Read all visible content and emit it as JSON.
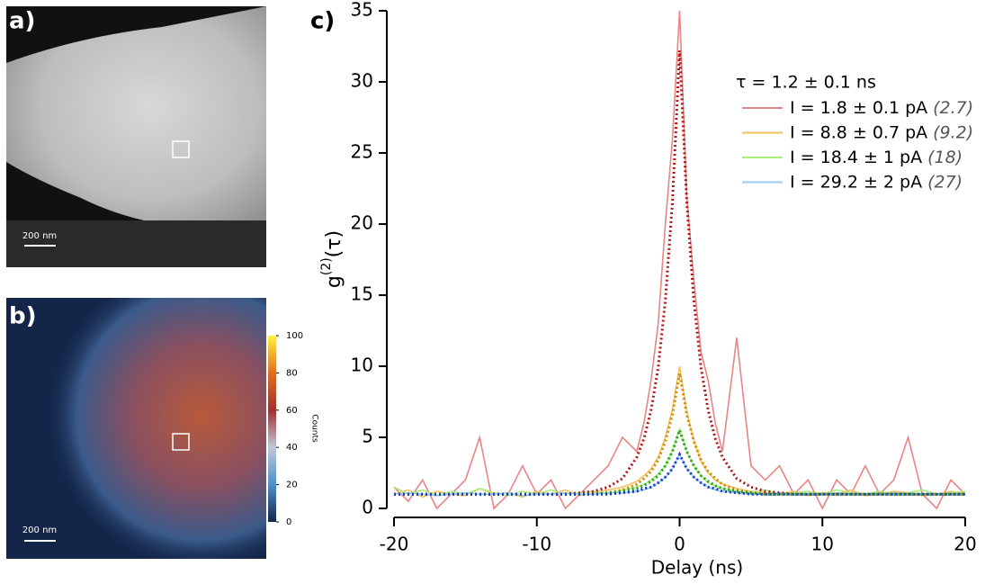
{
  "panel_a": {
    "label": "a)",
    "scale_bar": "200 nm"
  },
  "panel_b": {
    "label": "b)",
    "scale_bar": "200 nm",
    "colorbar": {
      "label": "Counts",
      "lim": [
        0,
        100
      ],
      "ticks": [
        0,
        20,
        40,
        60,
        80,
        100
      ]
    }
  },
  "chart_data": {
    "type": "line",
    "panel_label": "c)",
    "xlabel": "Delay (ns)",
    "ylabel": {
      "base": "g",
      "sup": "(2)",
      "arg": "(τ)"
    },
    "legend_title": "τ = 1.2 ± 0.1 ns",
    "xlim": [
      -20,
      20
    ],
    "ylim": [
      0,
      35
    ],
    "xticks": [
      -20,
      -10,
      0,
      10,
      20
    ],
    "yticks": [
      0,
      5,
      10,
      15,
      20,
      25,
      30,
      35
    ],
    "x": [
      -20,
      -19,
      -18,
      -17,
      -16,
      -15,
      -14,
      -13,
      -12,
      -11,
      -10,
      -9,
      -8,
      -7,
      -6,
      -5,
      -4,
      -3,
      -2.5,
      -2,
      -1.5,
      -1,
      -0.5,
      0,
      0.5,
      1,
      1.5,
      2,
      2.5,
      3,
      4,
      5,
      6,
      7,
      8,
      9,
      10,
      11,
      12,
      13,
      14,
      15,
      16,
      17,
      18,
      19,
      20
    ],
    "series": [
      {
        "name": "I = 1.8 ± 0.1 pA",
        "note": "(2.7)",
        "color": "#e88585",
        "values": [
          1.5,
          0.5,
          2,
          0,
          1,
          2,
          5,
          0,
          1,
          3,
          1,
          2,
          0,
          1,
          2,
          3,
          5,
          4,
          6,
          9,
          13,
          20,
          26,
          35,
          22,
          16,
          11,
          9,
          6,
          4,
          12,
          3,
          2,
          3,
          1,
          2,
          0,
          2,
          1,
          3,
          1,
          2,
          5,
          1,
          0,
          2,
          1
        ]
      },
      {
        "name": "I = 8.8 ± 0.7 pA",
        "note": "(9.2)",
        "color": "#f5c060",
        "values": [
          1,
          1.3,
          0.8,
          1.2,
          1,
          0.9,
          1.4,
          1,
          1.1,
          0.8,
          1.2,
          1,
          1.3,
          0.9,
          1.1,
          1.3,
          1.5,
          1.9,
          2.3,
          2.8,
          3.6,
          5,
          7,
          10,
          6.8,
          4.8,
          3.3,
          2.5,
          2,
          1.7,
          1.4,
          1.2,
          1.1,
          1,
          1.2,
          0.9,
          1.1,
          1,
          1.3,
          0.9,
          1,
          1.2,
          1.1,
          0.9,
          1,
          1.2,
          1
        ]
      },
      {
        "name": "I = 18.4 ± 1 pA",
        "note": "(18)",
        "color": "#a8ee78",
        "values": [
          1.5,
          1,
          1.3,
          0.9,
          1.2,
          1,
          1.4,
          1.1,
          0.9,
          1.2,
          1,
          1.3,
          1,
          1.1,
          1.2,
          1,
          1.3,
          1.5,
          1.7,
          2,
          2.4,
          3,
          4.1,
          5.6,
          4,
          3,
          2.3,
          1.8,
          1.6,
          1.4,
          1.2,
          1.1,
          1.3,
          1,
          1.1,
          1.2,
          1,
          1.3,
          1.1,
          1,
          1.2,
          1,
          1.1,
          1.3,
          1,
          1.1,
          1.2
        ]
      },
      {
        "name": "I = 29.2 ± 2 pA",
        "note": "(27)",
        "color": "#98ccf0",
        "values": [
          1,
          1.1,
          1,
          0.9,
          1,
          1.1,
          1,
          1,
          1.1,
          0.9,
          1,
          1,
          1.1,
          1,
          1,
          1.1,
          1.1,
          1.2,
          1.3,
          1.5,
          1.8,
          2.2,
          2.8,
          3.8,
          2.8,
          2.2,
          1.8,
          1.5,
          1.3,
          1.2,
          1.1,
          1,
          1,
          1.1,
          1,
          1,
          1,
          1.1,
          1,
          1,
          1,
          1.1,
          1,
          1,
          1,
          1,
          1
        ]
      }
    ],
    "fits": [
      {
        "color": "#b01515",
        "values": [
          1,
          1,
          1,
          1,
          1,
          1,
          1,
          1,
          1,
          1,
          1,
          1,
          1,
          1.1,
          1.2,
          1.5,
          2.1,
          3.6,
          4.9,
          6.9,
          9.9,
          14.6,
          21.6,
          32.2,
          21.6,
          14.6,
          9.9,
          6.9,
          4.9,
          3.6,
          2.1,
          1.5,
          1.2,
          1.1,
          1,
          1,
          1,
          1,
          1,
          1,
          1,
          1,
          1,
          1,
          1,
          1,
          1
        ]
      },
      {
        "color": "#d08a00",
        "values": [
          1,
          1,
          1,
          1,
          1,
          1,
          1,
          1,
          1,
          1,
          1,
          1,
          1,
          1,
          1,
          1.1,
          1.3,
          1.7,
          2.1,
          2.6,
          3.4,
          4.7,
          6.6,
          9.5,
          6.6,
          4.7,
          3.4,
          2.6,
          2.1,
          1.7,
          1.3,
          1.1,
          1,
          1,
          1,
          1,
          1,
          1,
          1,
          1,
          1,
          1,
          1,
          1,
          1,
          1,
          1
        ]
      },
      {
        "color": "#22a022",
        "values": [
          1,
          1,
          1,
          1,
          1,
          1,
          1,
          1,
          1,
          1,
          1,
          1,
          1,
          1,
          1,
          1.1,
          1.2,
          1.4,
          1.6,
          1.9,
          2.3,
          3,
          4,
          5.5,
          4,
          3,
          2.3,
          1.9,
          1.6,
          1.4,
          1.2,
          1.1,
          1,
          1,
          1,
          1,
          1,
          1,
          1,
          1,
          1,
          1,
          1,
          1,
          1,
          1,
          1
        ]
      },
      {
        "color": "#1a3ad0",
        "values": [
          1,
          1,
          1,
          1,
          1,
          1,
          1,
          1,
          1,
          1,
          1,
          1,
          1,
          1,
          1,
          1,
          1.1,
          1.2,
          1.4,
          1.5,
          1.8,
          2.2,
          2.8,
          3.8,
          2.8,
          2.2,
          1.8,
          1.5,
          1.4,
          1.2,
          1.1,
          1,
          1,
          1,
          1,
          1,
          1,
          1,
          1,
          1,
          1,
          1,
          1,
          1,
          1,
          1,
          1
        ]
      }
    ]
  }
}
